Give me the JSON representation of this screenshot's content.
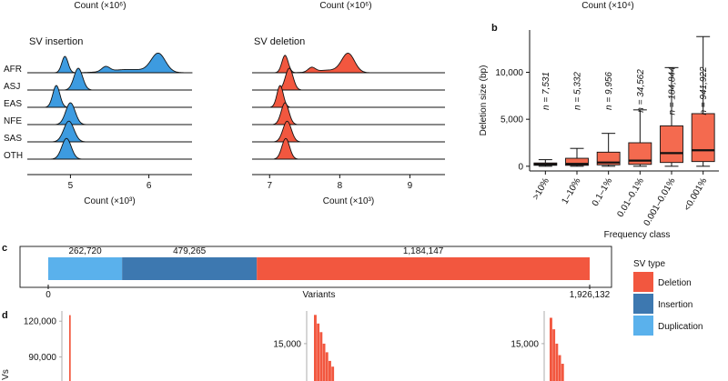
{
  "colors": {
    "insertion_ridge": "#3d9be0",
    "deletion_ridge": "#f2573f",
    "deletion": "#f2573f",
    "insertion": "#3d78b0",
    "duplication": "#5ab1ec",
    "box_fill": "#f46a4f"
  },
  "labels": {
    "panel_b": "b",
    "panel_c": "c",
    "panel_d": "d",
    "top_count_label": "Count (×10⁶)",
    "top_count_label_b": "Count (×10⁴)"
  },
  "chart_data": [
    {
      "id": "ridge-insertion",
      "type": "area",
      "title": "SV insertion",
      "xlabel": "Count (×10³)",
      "xlim": [
        4.45,
        6.55
      ],
      "xticks": [
        5,
        6
      ],
      "populations": [
        "AFR",
        "ASJ",
        "EAS",
        "NFE",
        "SAS",
        "OTH"
      ],
      "series": [
        {
          "name": "AFR",
          "peaks": [
            {
              "mu": 4.93,
              "sd": 0.04,
              "h": 0.75
            },
            {
              "mu": 5.45,
              "sd": 0.05,
              "h": 0.22
            },
            {
              "mu": 6.12,
              "sd": 0.09,
              "h": 0.85
            },
            {
              "mu": 5.75,
              "sd": 0.25,
              "h": 0.15
            }
          ]
        },
        {
          "name": "ASJ",
          "peaks": [
            {
              "mu": 5.1,
              "sd": 0.055,
              "h": 1.0
            }
          ]
        },
        {
          "name": "EAS",
          "peaks": [
            {
              "mu": 4.82,
              "sd": 0.045,
              "h": 1.0
            }
          ]
        },
        {
          "name": "NFE",
          "peaks": [
            {
              "mu": 5.0,
              "sd": 0.06,
              "h": 1.0
            }
          ]
        },
        {
          "name": "SAS",
          "peaks": [
            {
              "mu": 4.98,
              "sd": 0.065,
              "h": 0.95
            }
          ]
        },
        {
          "name": "OTH",
          "peaks": [
            {
              "mu": 4.95,
              "sd": 0.06,
              "h": 0.95
            }
          ]
        }
      ]
    },
    {
      "id": "ridge-deletion",
      "type": "area",
      "title": "SV deletion",
      "xlabel": "Count (×10³)",
      "xlim": [
        6.75,
        9.5
      ],
      "xticks": [
        7,
        8,
        9
      ],
      "series": [
        {
          "name": "AFR",
          "peaks": [
            {
              "mu": 7.22,
              "sd": 0.045,
              "h": 0.8
            },
            {
              "mu": 7.6,
              "sd": 0.05,
              "h": 0.2
            },
            {
              "mu": 8.12,
              "sd": 0.09,
              "h": 0.85
            },
            {
              "mu": 7.85,
              "sd": 0.2,
              "h": 0.12
            }
          ]
        },
        {
          "name": "ASJ",
          "peaks": [
            {
              "mu": 7.28,
              "sd": 0.055,
              "h": 1.0
            }
          ]
        },
        {
          "name": "EAS",
          "peaks": [
            {
              "mu": 7.15,
              "sd": 0.045,
              "h": 1.0
            }
          ]
        },
        {
          "name": "NFE",
          "peaks": [
            {
              "mu": 7.22,
              "sd": 0.055,
              "h": 1.0
            }
          ]
        },
        {
          "name": "SAS",
          "peaks": [
            {
              "mu": 7.25,
              "sd": 0.06,
              "h": 0.95
            }
          ]
        },
        {
          "name": "OTH",
          "peaks": [
            {
              "mu": 7.23,
              "sd": 0.055,
              "h": 0.95
            }
          ]
        }
      ]
    },
    {
      "id": "box-deletion",
      "type": "box",
      "ylabel": "Deletion size (bp)",
      "xlabel": "Frequency class",
      "ylim": [
        -500,
        14500
      ],
      "yticks": [
        0,
        5000,
        10000
      ],
      "ytick_labels": [
        "0",
        "5,000",
        "10,000"
      ],
      "categories": [
        ">10%",
        "1–10%",
        "0.1–1%",
        "0.01–0.1%",
        "0.001–0.01%",
        "<0.001%"
      ],
      "n_labels": [
        "n = 7,531",
        "n = 5,332",
        "n = 9,956",
        "n = 34,562",
        "n = 184,844",
        "n = 941,922"
      ],
      "boxes": [
        {
          "whislo": 0,
          "q1": 100,
          "med": 200,
          "q3": 350,
          "whishi": 700
        },
        {
          "whislo": 0,
          "q1": 100,
          "med": 250,
          "q3": 850,
          "whishi": 1900
        },
        {
          "whislo": 0,
          "q1": 150,
          "med": 400,
          "q3": 1500,
          "whishi": 3500
        },
        {
          "whislo": 0,
          "q1": 200,
          "med": 600,
          "q3": 2500,
          "whishi": 6000
        },
        {
          "whislo": 0,
          "q1": 400,
          "med": 1400,
          "q3": 4300,
          "whishi": 10500
        },
        {
          "whislo": 0,
          "q1": 500,
          "med": 1700,
          "q3": 5600,
          "whishi": 13800
        }
      ]
    },
    {
      "id": "stacked-sv-types",
      "type": "bar",
      "xlabel": "Variants",
      "xlim": [
        0,
        1926132
      ],
      "xtick_labels": [
        "0",
        "1,926,132"
      ],
      "segments": [
        {
          "name": "Duplication",
          "value": 262720,
          "label": "262,720"
        },
        {
          "name": "Insertion",
          "value": 479265,
          "label": "479,265"
        },
        {
          "name": "Deletion",
          "value": 1184147,
          "label": "1,184,147"
        }
      ],
      "legend_title": "SV type",
      "legend": [
        "Deletion",
        "Insertion",
        "Duplication"
      ]
    },
    {
      "id": "hist-partial",
      "type": "bar",
      "ylabel": "Vs",
      "panels": [
        {
          "ytick_labels": [
            "120,000",
            "90,000"
          ],
          "yticks": [
            120000,
            90000
          ],
          "ylim": [
            70000,
            130000
          ],
          "bars": [
            125000
          ]
        },
        {
          "ytick_labels": [
            "15,000"
          ],
          "yticks": [
            15000
          ],
          "ylim": [
            8500,
            21000
          ],
          "bars": [
            20000,
            18500,
            17000,
            15000,
            13500,
            12000,
            11000
          ]
        },
        {
          "ytick_labels": [
            "15,000"
          ],
          "yticks": [
            15000
          ],
          "ylim": [
            8500,
            21000
          ],
          "bars": [
            19500,
            17500,
            15000,
            13000,
            11500
          ]
        }
      ]
    }
  ]
}
